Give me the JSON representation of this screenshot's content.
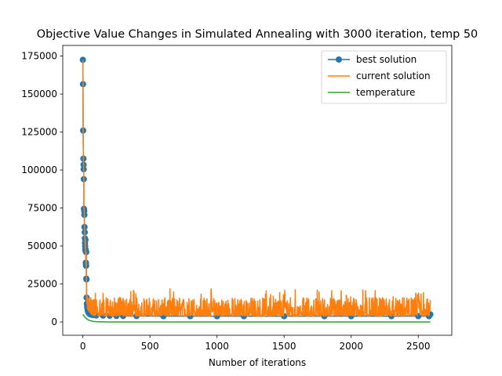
{
  "chart_data": {
    "type": "line",
    "title": "Objective Value Changes in Simulated Annealing with 3000 iteration, temp 50",
    "xlabel": "Number of iterations",
    "ylabel": "",
    "xlim": [
      -150,
      2750
    ],
    "ylim": [
      -8750,
      182000
    ],
    "x_ticks": [
      0,
      500,
      1000,
      1500,
      2000,
      2500
    ],
    "y_ticks": [
      0,
      25000,
      50000,
      75000,
      100000,
      125000,
      150000,
      175000
    ],
    "x_tick_labels": [
      "0",
      "500",
      "1000",
      "1500",
      "2000",
      "2500"
    ],
    "y_tick_labels": [
      "0",
      "25000",
      "50000",
      "75000",
      "100000",
      "125000",
      "150000",
      "175000"
    ],
    "grid": false,
    "legend_position": "upper-right",
    "series": [
      {
        "name": "best solution",
        "color": "#1f77b4",
        "marker": "circle",
        "x": [
          0,
          1,
          2,
          4,
          5,
          6,
          7,
          8,
          10,
          11,
          12,
          14,
          15,
          16,
          17,
          18,
          19,
          20,
          21,
          22,
          23,
          24,
          25,
          26,
          27,
          28,
          30,
          32,
          34,
          36,
          38,
          40,
          44,
          48,
          55,
          65,
          80,
          100,
          150,
          200,
          250,
          300,
          400,
          600,
          800,
          1000,
          1200,
          1500,
          1800,
          2000,
          2300,
          2500,
          2580,
          2590
        ],
        "y": [
          172500,
          156500,
          126000,
          107500,
          103500,
          100500,
          94000,
          74500,
          73000,
          70500,
          62500,
          59000,
          55000,
          52000,
          50000,
          48000,
          54000,
          47500,
          46500,
          39000,
          38000,
          37000,
          46000,
          28500,
          28000,
          16000,
          12000,
          10000,
          9000,
          8000,
          7000,
          6500,
          6000,
          5500,
          5000,
          4800,
          4500,
          4300,
          4200,
          4100,
          4000,
          3900,
          3900,
          3800,
          3800,
          3800,
          3800,
          3800,
          3800,
          3800,
          3800,
          3800,
          3800,
          5000
        ]
      },
      {
        "name": "current solution",
        "color": "#ff7f0e",
        "x_start": 0,
        "x_end": 2590,
        "early_x": [
          0,
          1,
          2,
          4,
          5,
          6,
          7,
          8,
          10,
          11,
          12,
          14,
          15,
          16,
          17,
          18,
          19,
          20,
          21,
          22,
          23,
          24,
          25,
          26,
          27,
          28,
          30,
          32,
          34,
          36,
          38,
          40,
          44,
          48,
          55
        ],
        "early_y": [
          172500,
          156500,
          126000,
          107500,
          103500,
          100500,
          94000,
          74500,
          73000,
          70500,
          62500,
          59000,
          55000,
          52000,
          50000,
          48000,
          54000,
          47500,
          46500,
          39000,
          38000,
          37000,
          46000,
          28500,
          28000,
          16000,
          12000,
          17000,
          9000,
          15000,
          8000,
          16000,
          7000,
          15000,
          6000
        ],
        "steady_state_low": 3800,
        "steady_state_typical_high": [
          8000,
          16000
        ],
        "steady_state_peak": 22000
      },
      {
        "name": "temperature",
        "color": "#2ca02c",
        "x": [
          0,
          10,
          20,
          30,
          40,
          50,
          60,
          80,
          100,
          150,
          200,
          300,
          500,
          1000,
          1500,
          2000,
          2500,
          2590
        ],
        "y": [
          5000,
          3800,
          2800,
          2000,
          1400,
          1000,
          700,
          350,
          180,
          50,
          15,
          0,
          0,
          0,
          0,
          0,
          0,
          0
        ]
      }
    ]
  }
}
